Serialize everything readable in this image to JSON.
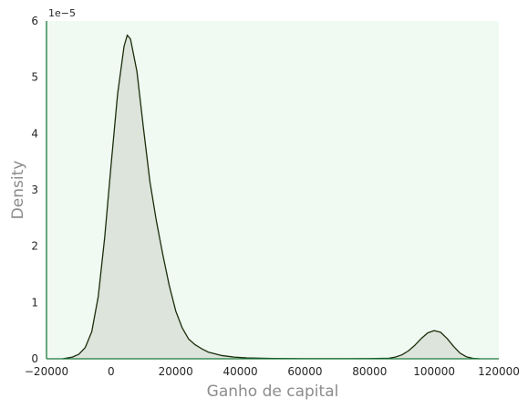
{
  "chart_data": {
    "type": "area",
    "title": "",
    "xlabel": "Ganho de capital",
    "ylabel": "Density",
    "y_offset_text": "1e−5",
    "xlim": [
      -20000,
      120000
    ],
    "ylim": [
      0,
      6
    ],
    "x_ticks": [
      -20000,
      0,
      20000,
      40000,
      60000,
      80000,
      100000,
      120000
    ],
    "y_ticks": [
      0,
      1,
      2,
      3,
      4,
      5,
      6
    ],
    "grid": false,
    "legend": "none",
    "series": [
      {
        "x": [
          -15000,
          -12000,
          -10000,
          -8000,
          -6000,
          -4000,
          -2000,
          0,
          2000,
          4000,
          5000,
          6000,
          8000,
          10000,
          12000,
          14000,
          16000,
          18000,
          20000,
          22000,
          24000,
          26000,
          28000,
          30000,
          34000,
          38000,
          42000,
          50000,
          60000,
          70000,
          80000,
          86000,
          88000,
          90000,
          92000,
          94000,
          96000,
          98000,
          100000,
          102000,
          104000,
          106000,
          108000,
          110000,
          112000,
          114000
        ],
        "y": [
          0.0,
          0.03,
          0.08,
          0.2,
          0.48,
          1.1,
          2.15,
          3.45,
          4.7,
          5.55,
          5.75,
          5.68,
          5.1,
          4.1,
          3.15,
          2.45,
          1.85,
          1.3,
          0.85,
          0.55,
          0.35,
          0.25,
          0.18,
          0.12,
          0.06,
          0.03,
          0.015,
          0.005,
          0.002,
          0.002,
          0.003,
          0.01,
          0.03,
          0.07,
          0.14,
          0.24,
          0.36,
          0.46,
          0.5,
          0.47,
          0.36,
          0.22,
          0.1,
          0.035,
          0.008,
          0.0
        ]
      }
    ]
  },
  "colors": {
    "plot_background": "#f0f9f2",
    "axis_line": "#1b7a3a",
    "curve_line": "#1a2e0a",
    "curve_fill": "#dde4dc"
  }
}
